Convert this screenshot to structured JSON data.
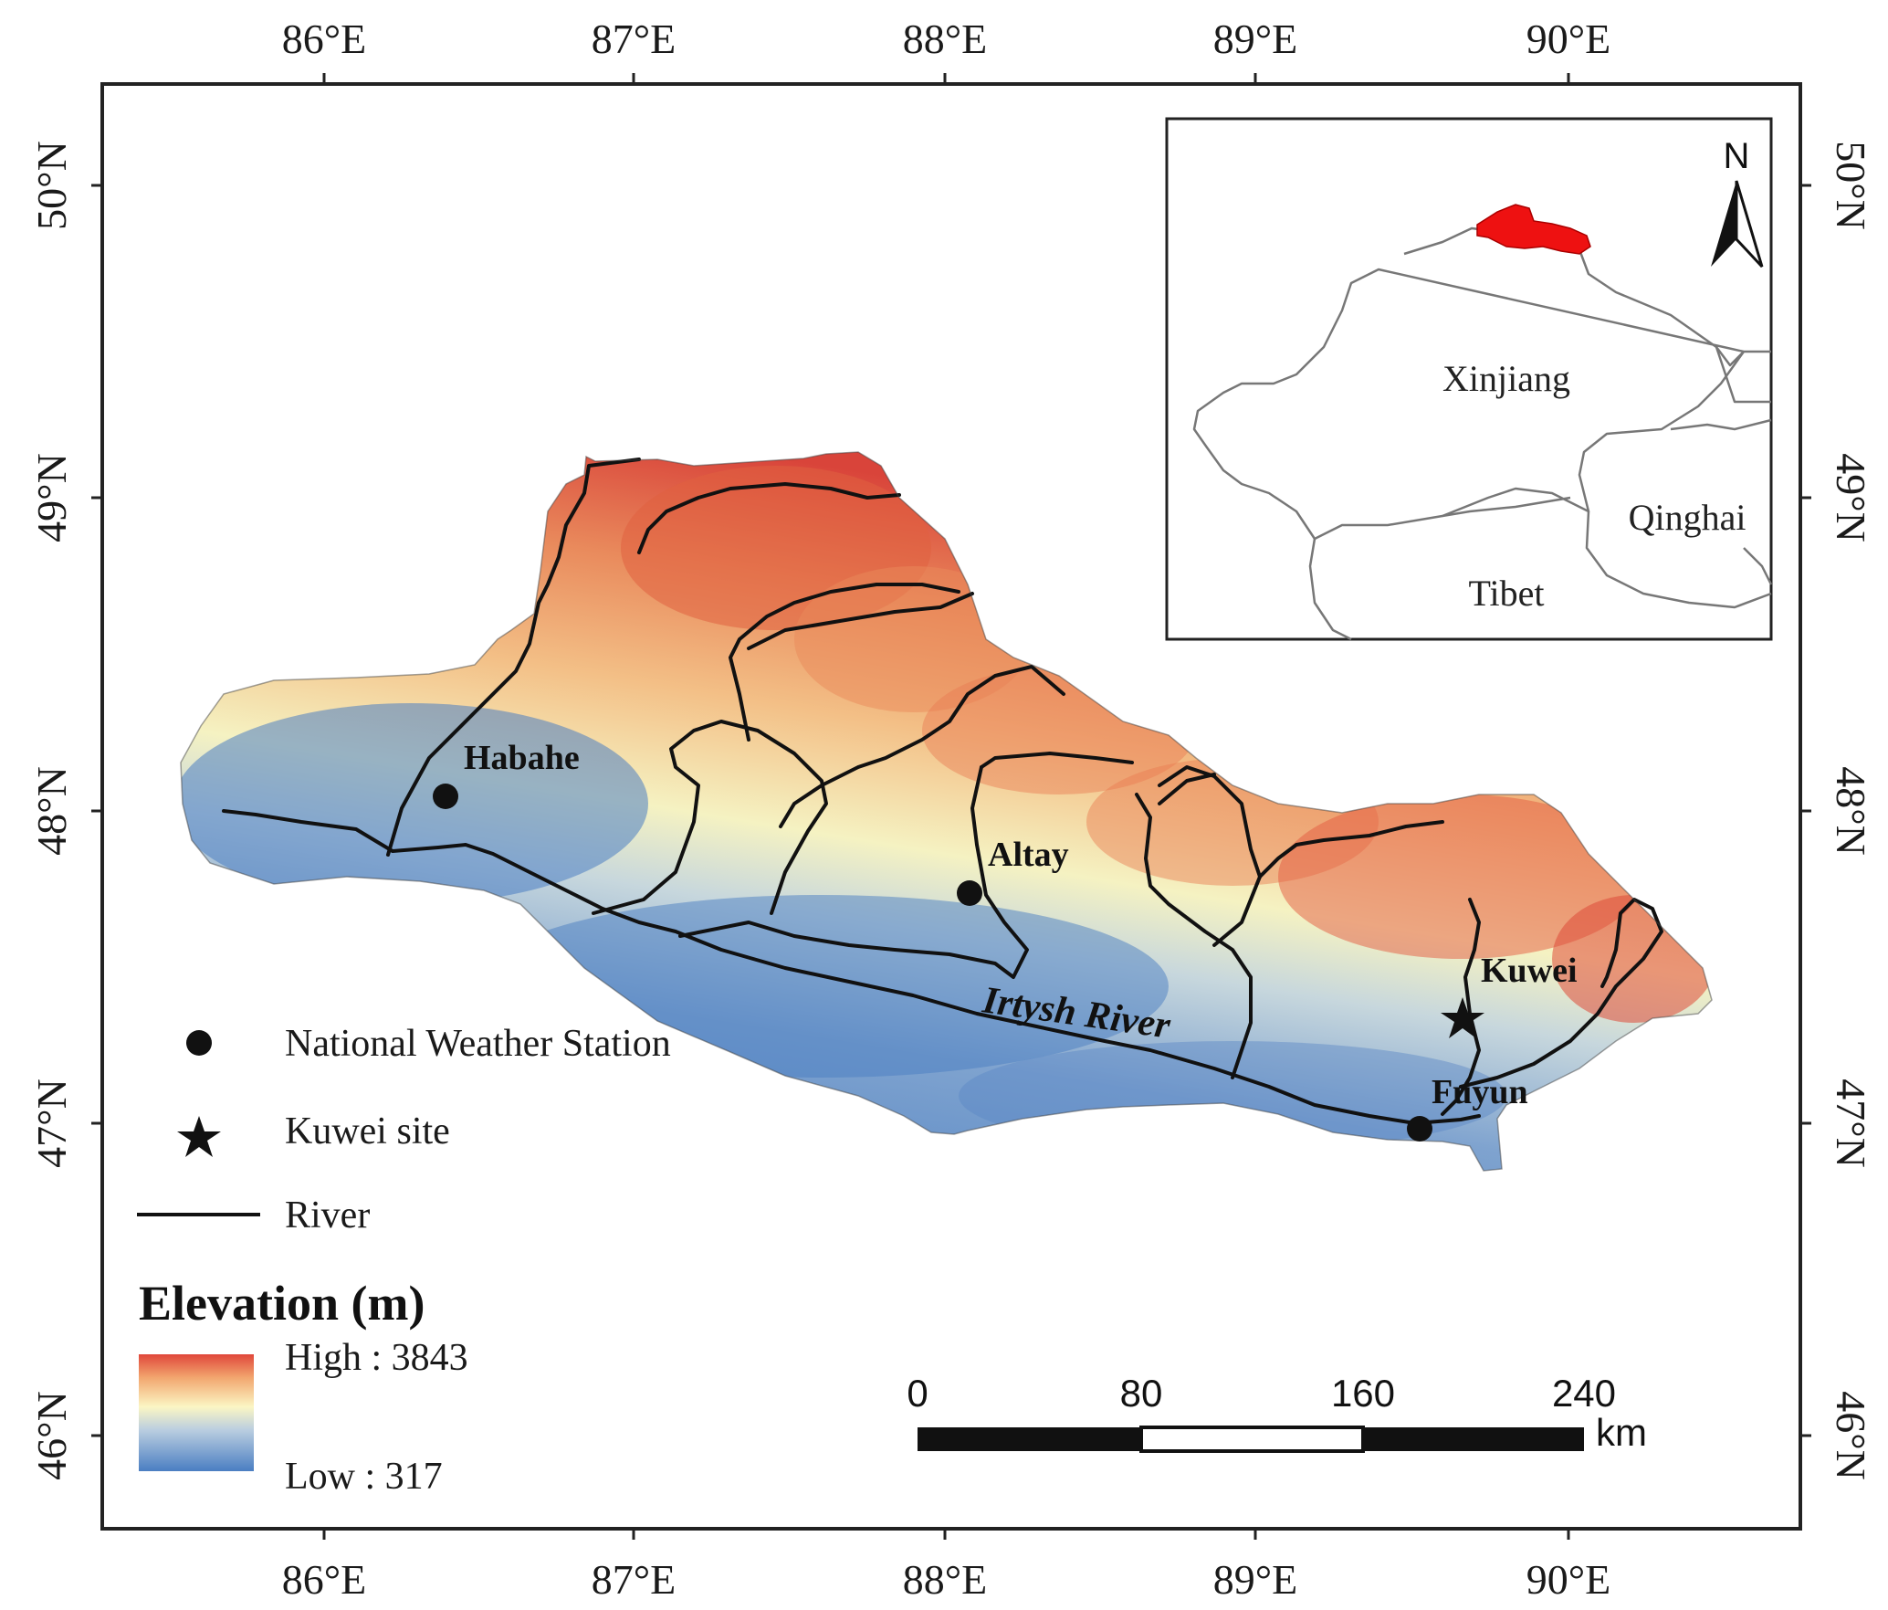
{
  "axes": {
    "top_labels": [
      "86°E",
      "87°E",
      "88°E",
      "89°E",
      "90°E"
    ],
    "bottom_labels": [
      "86°E",
      "87°E",
      "88°E",
      "89°E",
      "90°E"
    ],
    "left_labels": [
      "50°N",
      "49°N",
      "48°N",
      "47°N",
      "46°N"
    ],
    "right_labels": [
      "50°N",
      "49°N",
      "48°N",
      "47°N",
      "46°N"
    ]
  },
  "places": {
    "habahe": "Habahe",
    "altay": "Altay",
    "kuwei": "Kuwei",
    "fuyun": "Fuyun",
    "river": "Irtysh River"
  },
  "legend": {
    "station": "National Weather Station",
    "site": "Kuwei site",
    "river": "River",
    "elevation_title": "Elevation (m)",
    "high": "High : 3843",
    "low": "Low : 317"
  },
  "scale_bar": {
    "ticks": [
      "0",
      "80",
      "160",
      "240"
    ],
    "unit": "km"
  },
  "inset": {
    "north": "N",
    "xinjiang": "Xinjiang",
    "qinghai": "Qinghai",
    "tibet": "Tibet"
  },
  "colors": {
    "high": "#e0473a",
    "mid": "#fbf6c4",
    "low": "#4a7ec2",
    "highlight": "#ee1111"
  }
}
